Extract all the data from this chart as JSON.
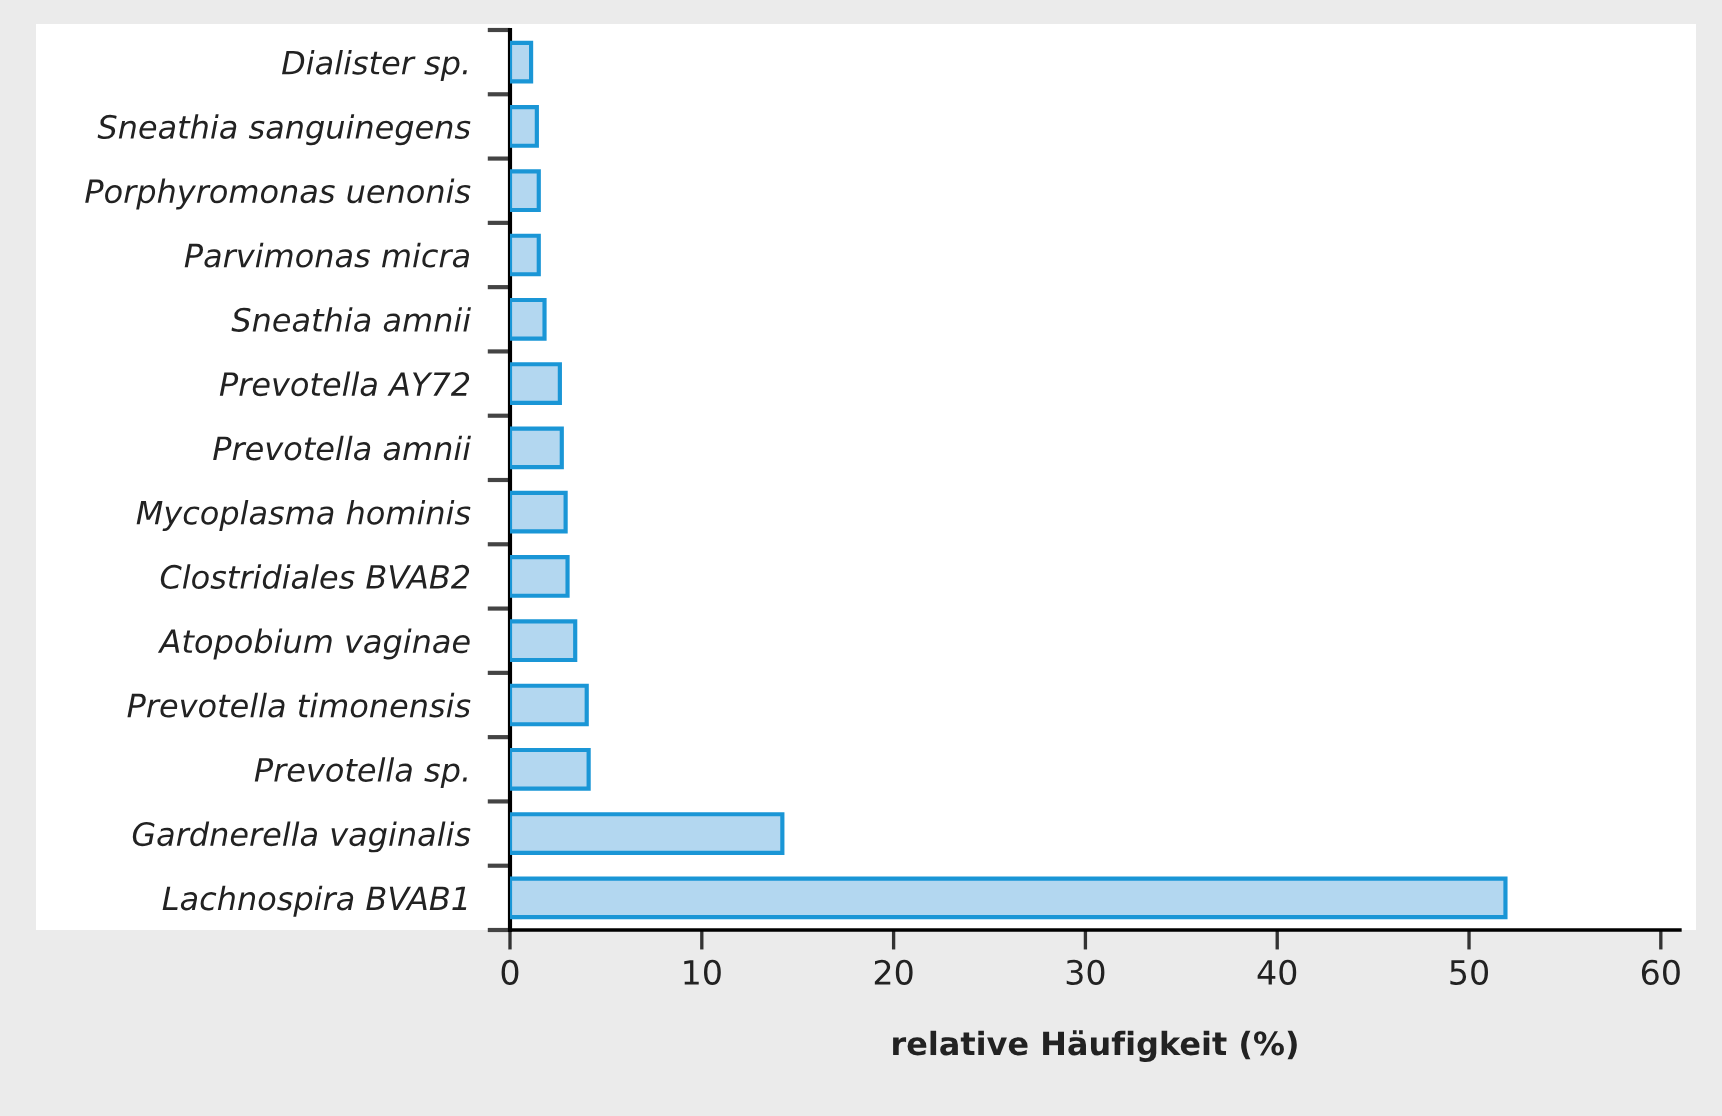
{
  "chart_data": {
    "type": "bar",
    "orientation": "horizontal",
    "categories": [
      "Dialister sp.",
      "Sneathia sanguinegens",
      "Porphyromonas uenonis",
      "Parvimonas micra",
      "Sneathia amnii",
      "Prevotella AY72",
      "Prevotella amnii",
      "Mycoplasma hominis",
      "Clostridiales BVAB2",
      "Atopobium vaginae",
      "Prevotella timonensis",
      "Prevotella sp.",
      "Gardnerella vaginalis",
      "Lachnospira BVAB1"
    ],
    "values": [
      1.1,
      1.4,
      1.5,
      1.5,
      1.8,
      2.6,
      2.7,
      2.9,
      3.0,
      3.4,
      4.0,
      4.1,
      14.2,
      51.9
    ],
    "color": "#b3d7f0",
    "xlabel": "relative Häufigkeit (%)",
    "xlim": [
      0,
      61
    ],
    "xticks": [
      0,
      10,
      20,
      30,
      40,
      50,
      60
    ],
    "grid": false,
    "legend": false
  }
}
